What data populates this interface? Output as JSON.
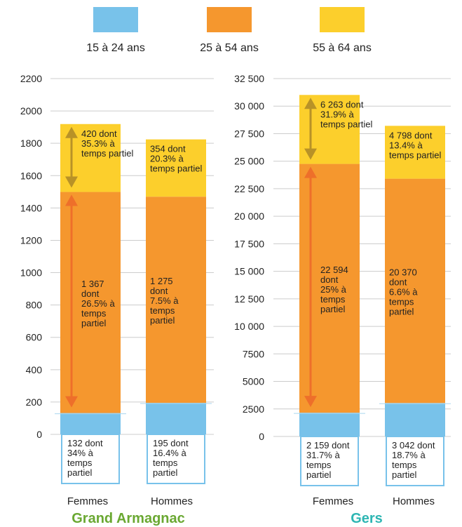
{
  "colors": {
    "young": "#78c2ea",
    "middle": "#f5972e",
    "senior": "#fccf2c",
    "arrow_middle": "#ee6f2a",
    "arrow_senior": "#b89227",
    "grid": "#cccccc",
    "title_left": "#6aa832",
    "title_right": "#2eb6b3",
    "text": "#222222"
  },
  "legend": [
    {
      "key": "young",
      "label": "15 à 24 ans"
    },
    {
      "key": "middle",
      "label": "25 à 54 ans"
    },
    {
      "key": "senior",
      "label": "55 à 64 ans"
    }
  ],
  "chart_data": [
    {
      "type": "bar",
      "stacked": true,
      "title": "Grand Armagnac",
      "categories": [
        "Femmes",
        "Hommes"
      ],
      "ylim": [
        0,
        2200
      ],
      "yticks": [
        0,
        200,
        400,
        600,
        800,
        1000,
        1200,
        1400,
        1600,
        1800,
        2000,
        2200
      ],
      "ytick_labels": [
        "0",
        "200",
        "400",
        "600",
        "800",
        "1000",
        "1200",
        "1400",
        "1600",
        "1800",
        "2000",
        "2200"
      ],
      "grid": true,
      "series": [
        {
          "key": "young",
          "name": "15 à 24 ans",
          "values": [
            132,
            195
          ],
          "labels": [
            "132 dont\n34% à\ntemps\npartiel",
            "195 dont\n16.4% à\ntemps\npartiel"
          ]
        },
        {
          "key": "middle",
          "name": "25 à 54 ans",
          "values": [
            1367,
            1275
          ],
          "labels": [
            "1 367\ndont\n26.5% à\ntemps\npartiel",
            "1 275\ndont\n7.5% à\ntemps\npartiel"
          ]
        },
        {
          "key": "senior",
          "name": "55 à 64 ans",
          "values": [
            420,
            354
          ],
          "labels": [
            "420 dont\n35.3% à\ntemps partiel",
            "354 dont\n20.3% à\ntemps partiel"
          ]
        }
      ]
    },
    {
      "type": "bar",
      "stacked": true,
      "title": "Gers",
      "categories": [
        "Femmes",
        "Hommes"
      ],
      "ylim": [
        0,
        32500
      ],
      "yticks": [
        0,
        2500,
        5000,
        7500,
        10000,
        12500,
        15000,
        17500,
        20000,
        22500,
        25000,
        27500,
        30000,
        32500
      ],
      "ytick_labels": [
        "0",
        "2500",
        "5000",
        "7500",
        "10 000",
        "12 500",
        "15 000",
        "17 500",
        "20 000",
        "22 500",
        "25 000",
        "27 500",
        "30 000",
        "32 500"
      ],
      "grid": true,
      "series": [
        {
          "key": "young",
          "name": "15 à 24 ans",
          "values": [
            2159,
            3042
          ],
          "labels": [
            "2 159 dont\n31.7% à\ntemps\npartiel",
            "3 042 dont\n18.7% à\ntemps\npartiel"
          ]
        },
        {
          "key": "middle",
          "name": "25 à 54 ans",
          "values": [
            22594,
            20370
          ],
          "labels": [
            "22 594\ndont\n25% à\ntemps\npartiel",
            "20 370\ndont\n6.6% à\ntemps\npartiel"
          ]
        },
        {
          "key": "senior",
          "name": "55 à 64 ans",
          "values": [
            6263,
            4798
          ],
          "labels": [
            "6 263 dont\n31.9% à\ntemps partiel",
            "4 798 dont\n13.4% à\ntemps partiel"
          ]
        }
      ]
    }
  ]
}
